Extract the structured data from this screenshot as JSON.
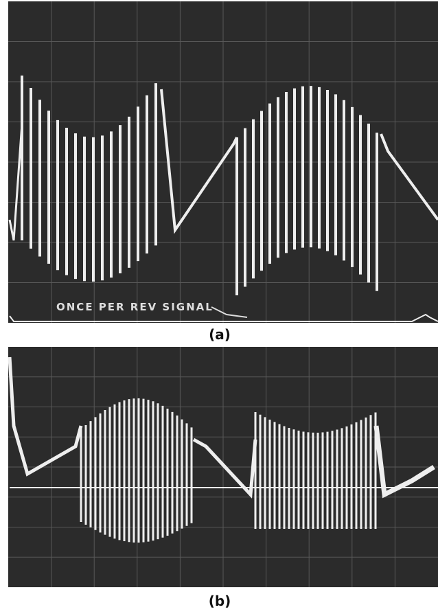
{
  "panel_a": {
    "annotation": "ONCE PER REV SIGNAL",
    "caption": "(a)"
  },
  "panel_b": {
    "caption": "(b)"
  }
}
